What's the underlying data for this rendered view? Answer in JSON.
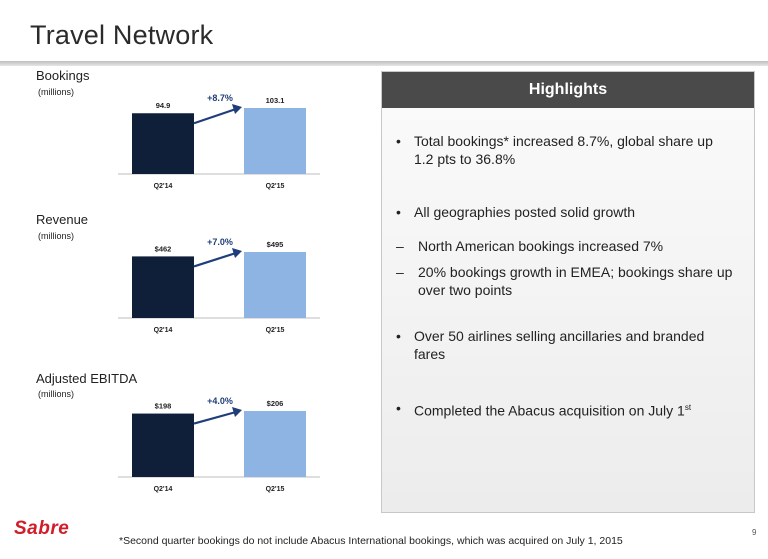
{
  "title": "Travel Network",
  "charts": [
    {
      "label": "Bookings",
      "unit": "(millions)",
      "growth": "+8.7%",
      "categories": [
        "Q2'14",
        "Q2'15"
      ],
      "values": [
        94.9,
        103.1
      ],
      "value_labels": [
        "94.9",
        "103.1"
      ]
    },
    {
      "label": "Revenue",
      "unit": "(millions)",
      "growth": "+7.0%",
      "categories": [
        "Q2'14",
        "Q2'15"
      ],
      "values": [
        462,
        495
      ],
      "value_labels": [
        "$462",
        "$495"
      ]
    },
    {
      "label": "Adjusted EBITDA",
      "unit": "(millions)",
      "growth": "+4.0%",
      "categories": [
        "Q2'14",
        "Q2'15"
      ],
      "values": [
        198,
        206
      ],
      "value_labels": [
        "$198",
        "$206"
      ]
    }
  ],
  "chart_data": [
    {
      "type": "bar",
      "title": "Bookings",
      "ylabel": "(millions)",
      "categories": [
        "Q2'14",
        "Q2'15"
      ],
      "values": [
        94.9,
        103.1
      ],
      "annotation": "+8.7%",
      "colors": [
        "#0f1f3a",
        "#8db4e2"
      ]
    },
    {
      "type": "bar",
      "title": "Revenue",
      "ylabel": "(millions)",
      "categories": [
        "Q2'14",
        "Q2'15"
      ],
      "values": [
        462,
        495
      ],
      "annotation": "+7.0%",
      "colors": [
        "#0f1f3a",
        "#8db4e2"
      ]
    },
    {
      "type": "bar",
      "title": "Adjusted EBITDA",
      "ylabel": "(millions)",
      "categories": [
        "Q2'14",
        "Q2'15"
      ],
      "values": [
        198,
        206
      ],
      "annotation": "+4.0%",
      "colors": [
        "#0f1f3a",
        "#8db4e2"
      ]
    }
  ],
  "colors": {
    "bar_prior": "#0f1f3a",
    "bar_current": "#8db4e2",
    "growth_text": "#1f3d7a",
    "header_bg": "#4a4a4a",
    "logo": "#d11e2a"
  },
  "highlights": {
    "header": "Highlights",
    "bullets": [
      {
        "marker": "•",
        "text": "Total bookings* increased 8.7%, global share up 1.2 pts to 36.8%"
      },
      {
        "marker": "•",
        "text": "All geographies posted solid growth"
      },
      {
        "marker": "–",
        "text": "North American bookings increased 7%"
      },
      {
        "marker": "–",
        "text": "20% bookings growth in EMEA; bookings share up over two points"
      },
      {
        "marker": "•",
        "text": "Over 50 airlines selling ancillaries and branded fares"
      },
      {
        "marker": "•",
        "text": "Completed the Abacus acquisition on July 1",
        "sup": "st"
      }
    ]
  },
  "logo": "Sabre",
  "footnote": "*Second quarter bookings do not include Abacus International bookings, which was acquired on July 1, 2015",
  "page_number": "9"
}
